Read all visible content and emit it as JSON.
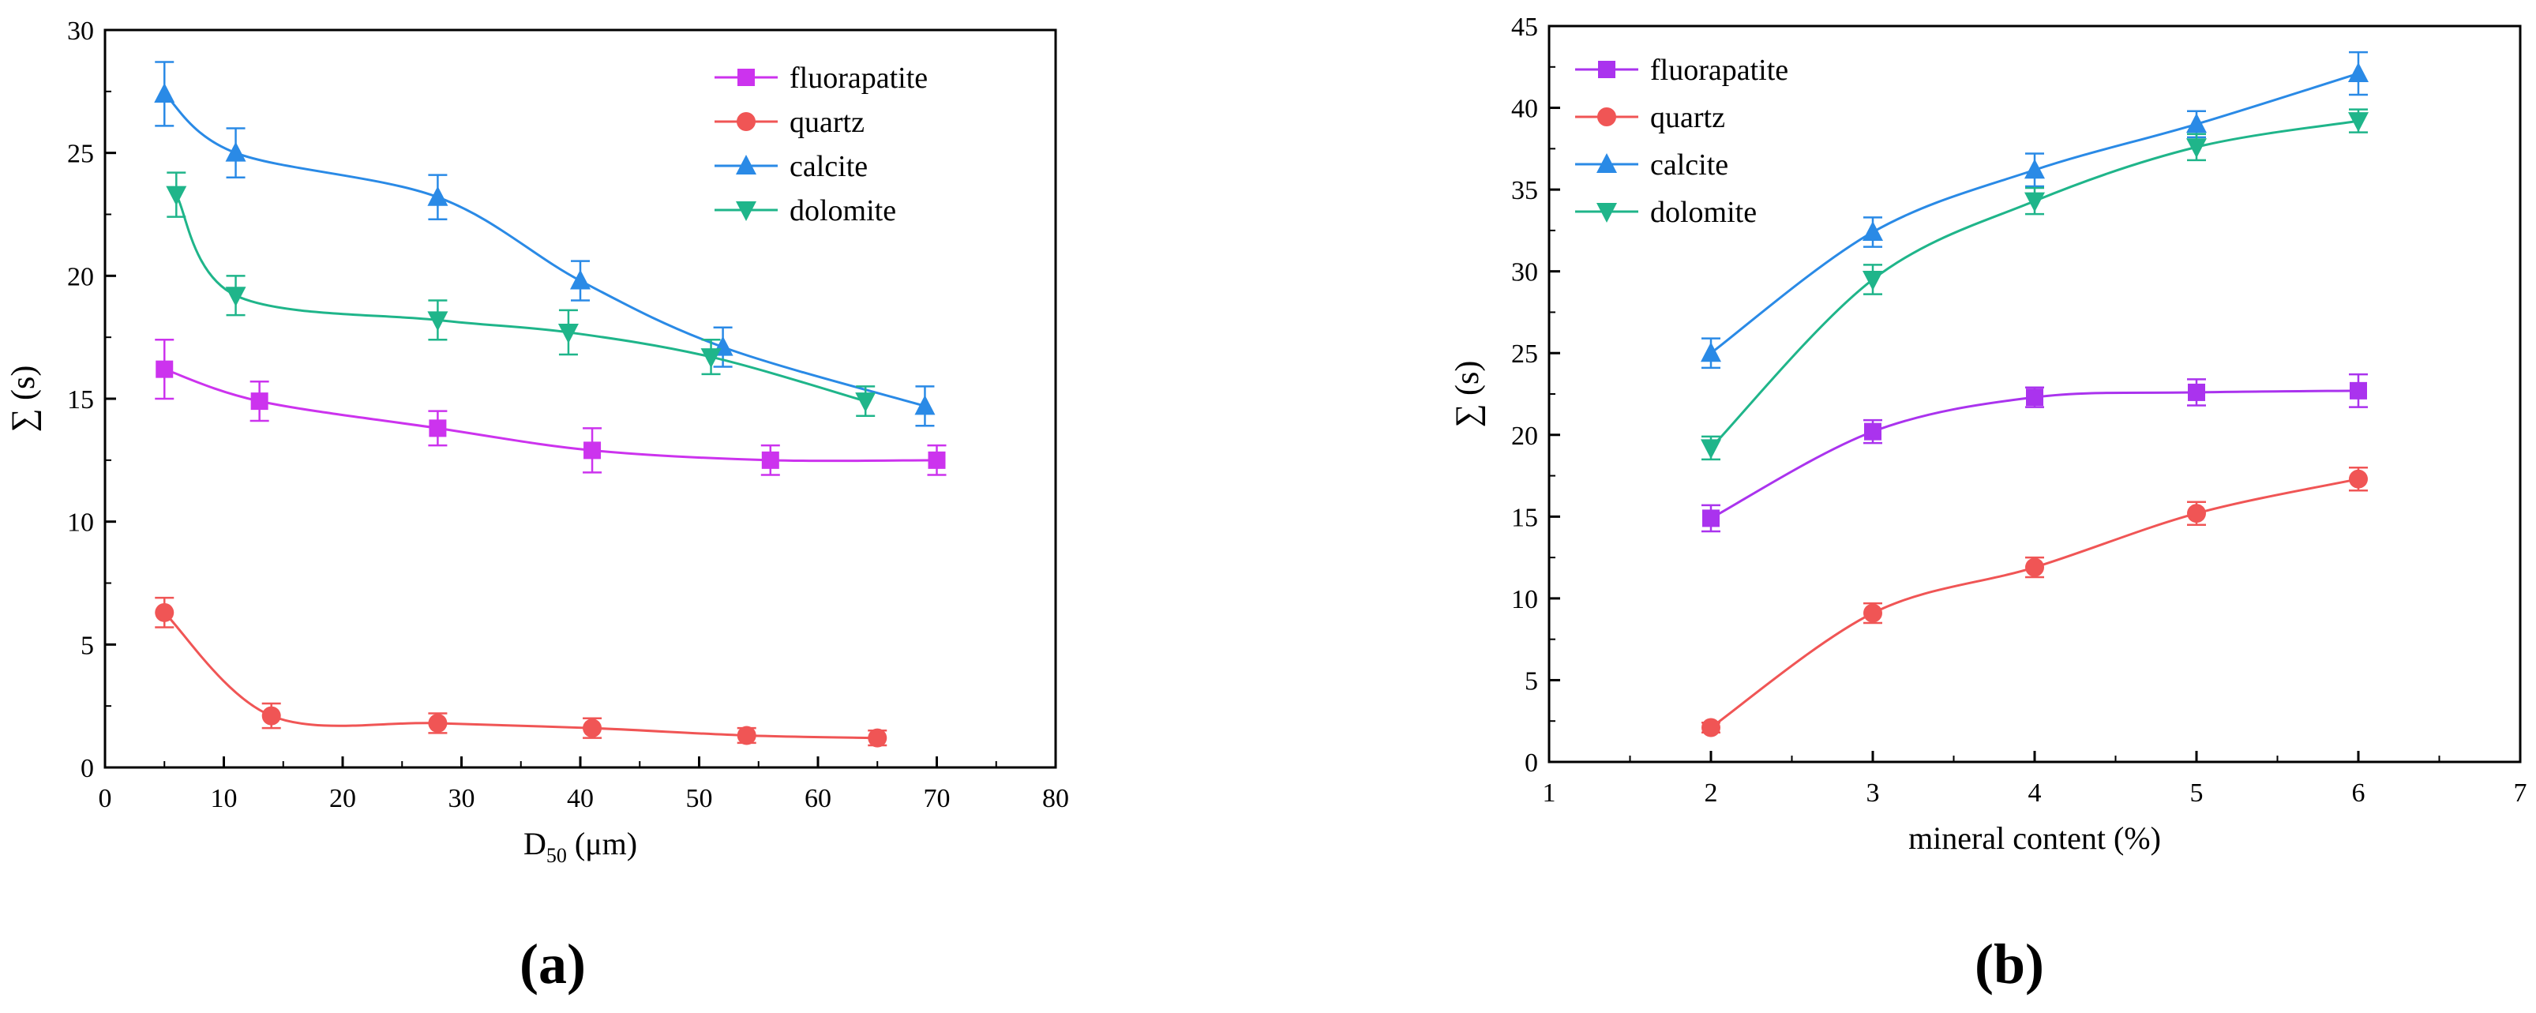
{
  "chart_data": [
    {
      "id": "a",
      "type": "line",
      "panel_label": "(a)",
      "title": "",
      "xlabel_main": "D",
      "xlabel_sub": "50",
      "xlabel_unit": " (μm)",
      "ylabel": "∑ (s)",
      "xlim": [
        0,
        80
      ],
      "ylim": [
        0,
        30
      ],
      "xticks": [
        0,
        10,
        20,
        30,
        40,
        50,
        60,
        70,
        80
      ],
      "yticks": [
        0,
        5,
        10,
        15,
        20,
        25,
        30
      ],
      "grid": false,
      "legend_position": "top-right",
      "series": [
        {
          "name": "fluorapatite",
          "color": "#cc33ee",
          "marker": "square",
          "x": [
            5,
            13,
            28,
            41,
            56,
            70
          ],
          "y": [
            16.2,
            14.9,
            13.8,
            12.9,
            12.5,
            12.5
          ],
          "err": [
            1.2,
            0.8,
            0.7,
            0.9,
            0.6,
            0.6
          ]
        },
        {
          "name": "quartz",
          "color": "#f05555",
          "marker": "circle",
          "x": [
            5,
            14,
            28,
            41,
            54,
            65
          ],
          "y": [
            6.3,
            2.1,
            1.8,
            1.6,
            1.3,
            1.2
          ],
          "err": [
            0.6,
            0.5,
            0.4,
            0.4,
            0.3,
            0.3
          ]
        },
        {
          "name": "calcite",
          "color": "#2a8ae6",
          "marker": "triangle-up",
          "x": [
            5,
            11,
            28,
            40,
            52,
            69
          ],
          "y": [
            27.4,
            25.0,
            23.2,
            19.8,
            17.1,
            14.7
          ],
          "err": [
            1.3,
            1.0,
            0.9,
            0.8,
            0.8,
            0.8
          ]
        },
        {
          "name": "dolomite",
          "color": "#1fb58a",
          "marker": "triangle-down",
          "x": [
            6,
            11,
            28,
            39,
            51,
            64
          ],
          "y": [
            23.3,
            19.2,
            18.2,
            17.7,
            16.7,
            14.9
          ],
          "err": [
            0.9,
            0.8,
            0.8,
            0.9,
            0.7,
            0.6
          ]
        }
      ]
    },
    {
      "id": "b",
      "type": "line",
      "panel_label": "(b)",
      "title": "",
      "xlabel": "mineral content (%)",
      "ylabel": "∑ (s)",
      "xlim": [
        1,
        7
      ],
      "ylim": [
        0,
        45
      ],
      "xticks": [
        1,
        2,
        3,
        4,
        5,
        6,
        7
      ],
      "yticks": [
        0,
        5,
        10,
        15,
        20,
        25,
        30,
        35,
        40,
        45
      ],
      "grid": false,
      "legend_position": "top-left",
      "series": [
        {
          "name": "fluorapatite",
          "color": "#aa33ee",
          "marker": "square",
          "x": [
            2,
            3,
            4,
            5,
            6
          ],
          "y": [
            14.9,
            20.2,
            22.3,
            22.6,
            22.7
          ],
          "err": [
            0.8,
            0.7,
            0.6,
            0.8,
            1.0
          ]
        },
        {
          "name": "quartz",
          "color": "#f05555",
          "marker": "circle",
          "x": [
            2,
            3,
            4,
            5,
            6
          ],
          "y": [
            2.1,
            9.1,
            11.9,
            15.2,
            17.3
          ],
          "err": [
            0.3,
            0.6,
            0.6,
            0.7,
            0.7
          ]
        },
        {
          "name": "calcite",
          "color": "#2a8ae6",
          "marker": "triangle-up",
          "x": [
            2,
            3,
            4,
            5,
            6
          ],
          "y": [
            25.0,
            32.4,
            36.2,
            39.0,
            42.1
          ],
          "err": [
            0.9,
            0.9,
            1.0,
            0.8,
            1.3
          ]
        },
        {
          "name": "dolomite",
          "color": "#1fb58a",
          "marker": "triangle-down",
          "x": [
            2,
            3,
            4,
            5,
            6
          ],
          "y": [
            19.2,
            29.5,
            34.3,
            37.6,
            39.2
          ],
          "err": [
            0.7,
            0.9,
            0.8,
            0.8,
            0.7
          ]
        }
      ]
    }
  ]
}
